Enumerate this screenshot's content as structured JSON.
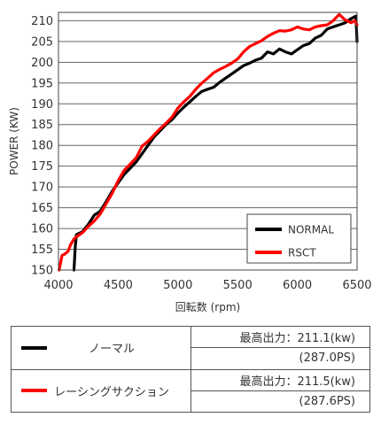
{
  "chart_data": {
    "type": "line",
    "xlabel": "回転数 (rpm)",
    "ylabel": "POWER (KW)",
    "xlim": [
      4000,
      6500
    ],
    "ylim": [
      150,
      212
    ],
    "xticks": [
      4000,
      4500,
      5000,
      5500,
      6000,
      6500
    ],
    "yticks": [
      150,
      155,
      160,
      165,
      170,
      175,
      180,
      185,
      190,
      195,
      200,
      205,
      210
    ],
    "grid": "horizontal",
    "legend_position": "bottom-right",
    "series": [
      {
        "name": "NORMAL",
        "color": "#000000",
        "points": [
          [
            4130,
            150
          ],
          [
            4140,
            155.5
          ],
          [
            4150,
            158.5
          ],
          [
            4170,
            158.8
          ],
          [
            4200,
            159.2
          ],
          [
            4250,
            161
          ],
          [
            4300,
            163.2
          ],
          [
            4350,
            164.2
          ],
          [
            4400,
            166.5
          ],
          [
            4450,
            169
          ],
          [
            4500,
            171
          ],
          [
            4550,
            173
          ],
          [
            4600,
            174.5
          ],
          [
            4650,
            176
          ],
          [
            4700,
            178
          ],
          [
            4750,
            180
          ],
          [
            4800,
            182
          ],
          [
            4850,
            183.5
          ],
          [
            4900,
            185
          ],
          [
            4950,
            186.2
          ],
          [
            5000,
            187.8
          ],
          [
            5050,
            189.2
          ],
          [
            5100,
            190.5
          ],
          [
            5150,
            191.8
          ],
          [
            5200,
            193
          ],
          [
            5250,
            193.5
          ],
          [
            5300,
            194
          ],
          [
            5350,
            195.2
          ],
          [
            5400,
            196.2
          ],
          [
            5450,
            197.2
          ],
          [
            5500,
            198.2
          ],
          [
            5550,
            199.2
          ],
          [
            5600,
            199.8
          ],
          [
            5650,
            200.5
          ],
          [
            5700,
            201
          ],
          [
            5750,
            202.5
          ],
          [
            5800,
            202
          ],
          [
            5850,
            203.2
          ],
          [
            5900,
            202.5
          ],
          [
            5950,
            202
          ],
          [
            6000,
            203
          ],
          [
            6050,
            204
          ],
          [
            6100,
            204.5
          ],
          [
            6150,
            205.8
          ],
          [
            6200,
            206.5
          ],
          [
            6250,
            208
          ],
          [
            6300,
            208.5
          ],
          [
            6350,
            209
          ],
          [
            6400,
            209.5
          ],
          [
            6450,
            210.5
          ],
          [
            6490,
            211.1
          ],
          [
            6500,
            205
          ]
        ]
      },
      {
        "name": "RSCT",
        "color": "#ff0000",
        "points": [
          [
            4005,
            150
          ],
          [
            4030,
            153.5
          ],
          [
            4050,
            153.8
          ],
          [
            4080,
            154.5
          ],
          [
            4100,
            156
          ],
          [
            4130,
            157.5
          ],
          [
            4150,
            158
          ],
          [
            4200,
            159
          ],
          [
            4250,
            160.5
          ],
          [
            4300,
            161.8
          ],
          [
            4350,
            163.5
          ],
          [
            4400,
            166
          ],
          [
            4450,
            168.5
          ],
          [
            4500,
            171.5
          ],
          [
            4550,
            174
          ],
          [
            4600,
            175.5
          ],
          [
            4650,
            177
          ],
          [
            4700,
            179.8
          ],
          [
            4750,
            181
          ],
          [
            4800,
            182.5
          ],
          [
            4850,
            184
          ],
          [
            4900,
            185.3
          ],
          [
            4950,
            186.8
          ],
          [
            5000,
            189
          ],
          [
            5050,
            190.5
          ],
          [
            5100,
            191.8
          ],
          [
            5150,
            193.5
          ],
          [
            5200,
            195
          ],
          [
            5250,
            196.2
          ],
          [
            5300,
            197.5
          ],
          [
            5350,
            198.3
          ],
          [
            5400,
            199
          ],
          [
            5450,
            199.8
          ],
          [
            5500,
            200.8
          ],
          [
            5550,
            202.5
          ],
          [
            5600,
            203.8
          ],
          [
            5650,
            204.5
          ],
          [
            5700,
            205.2
          ],
          [
            5750,
            206.2
          ],
          [
            5800,
            207
          ],
          [
            5850,
            207.6
          ],
          [
            5900,
            207.5
          ],
          [
            5950,
            207.8
          ],
          [
            6000,
            208.5
          ],
          [
            6050,
            208
          ],
          [
            6100,
            207.8
          ],
          [
            6150,
            208.5
          ],
          [
            6200,
            208.8
          ],
          [
            6250,
            209
          ],
          [
            6300,
            210
          ],
          [
            6350,
            211.5
          ],
          [
            6400,
            210.2
          ],
          [
            6450,
            209.5
          ],
          [
            6480,
            210
          ],
          [
            6500,
            209
          ]
        ]
      }
    ]
  },
  "spec_table": {
    "rows": [
      {
        "name": "ノーマル",
        "color": "#000000",
        "max_output_kw": "最高出力：211.1(kw)",
        "max_output_ps": "(287.0PS)"
      },
      {
        "name": "レーシングサクション",
        "color": "#ff0000",
        "max_output_kw": "最高出力：211.5(kw)",
        "max_output_ps": "(287.6PS)"
      }
    ]
  }
}
